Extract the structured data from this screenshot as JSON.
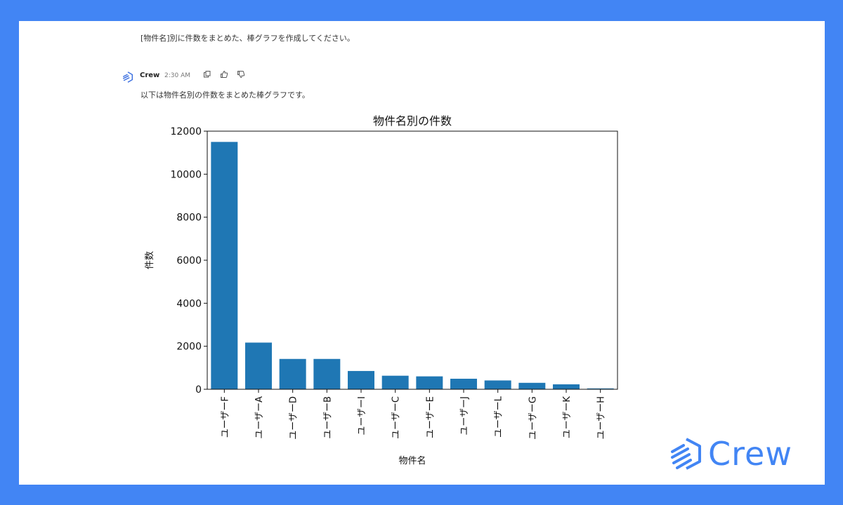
{
  "user_message": "[物件名]別に件数をまとめた、棒グラフを作成してください。",
  "bot": {
    "name": "Crew",
    "time": "2:30 AM",
    "icons": [
      "copy-icon",
      "thumbs-up-icon",
      "thumbs-down-icon"
    ],
    "reply": "以下は物件名別の件数をまとめた棒グラフです。"
  },
  "brand": {
    "name": "Crew",
    "color": "#4285f4"
  },
  "chart_data": {
    "type": "bar",
    "title": "物件名別の件数",
    "xlabel": "物件名",
    "ylabel": "件数",
    "categories": [
      "ユーザーF",
      "ユーザーA",
      "ユーザーD",
      "ユーザーB",
      "ユーザーI",
      "ユーザーC",
      "ユーザーE",
      "ユーザーJ",
      "ユーザーL",
      "ユーザーG",
      "ユーザーK",
      "ユーザーH"
    ],
    "values": [
      11500,
      2170,
      1410,
      1410,
      850,
      630,
      600,
      490,
      410,
      300,
      230,
      40
    ],
    "ylim": [
      0,
      12000
    ],
    "yticks": [
      0,
      2000,
      4000,
      6000,
      8000,
      10000,
      12000
    ],
    "bar_color": "#1f77b4",
    "grid": false
  }
}
